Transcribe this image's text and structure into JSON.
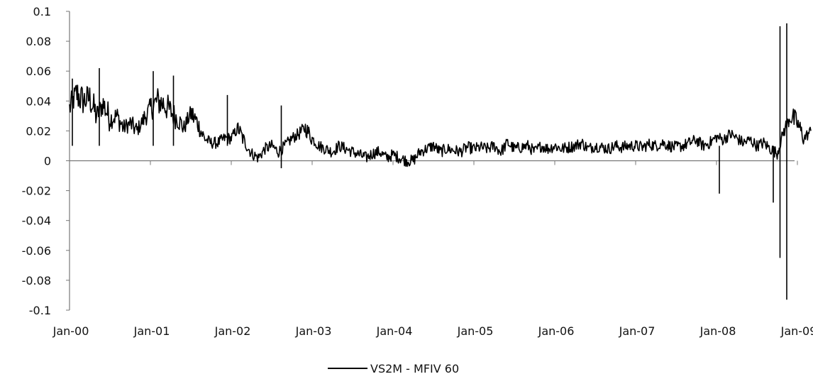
{
  "chart_data": {
    "type": "line",
    "title": "",
    "xlabel": "",
    "ylabel": "",
    "x_tick_labels": [
      "Jan-00",
      "Jan-01",
      "Jan-02",
      "Jan-03",
      "Jan-04",
      "Jan-05",
      "Jan-06",
      "Jan-07",
      "Jan-08",
      "Jan-09"
    ],
    "y_tick_labels": [
      "0.1",
      "0.08",
      "0.06",
      "0.04",
      "0.02",
      "0",
      "-0.02",
      "-0.04",
      "-0.06",
      "-0.08",
      "-0.1"
    ],
    "xlim": [
      "2000-01",
      "2009-03"
    ],
    "ylim": [
      -0.1,
      0.1
    ],
    "grid": false,
    "legend": {
      "position": "bottom",
      "entries": [
        "VS2M - MFIV 60"
      ]
    },
    "series": [
      {
        "name": "VS2M - MFIV 60",
        "color": "#000000",
        "x": [
          "2000-01",
          "2000-02",
          "2000-03",
          "2000-04",
          "2000-05",
          "2000-06",
          "2000-07",
          "2000-08",
          "2000-09",
          "2000-10",
          "2000-11",
          "2000-12",
          "2001-01",
          "2001-02",
          "2001-03",
          "2001-04",
          "2001-05",
          "2001-06",
          "2001-07",
          "2001-08",
          "2001-09",
          "2001-10",
          "2001-11",
          "2001-12",
          "2002-01",
          "2002-02",
          "2002-03",
          "2002-04",
          "2002-05",
          "2002-06",
          "2002-07",
          "2002-08",
          "2002-09",
          "2002-10",
          "2002-11",
          "2002-12",
          "2003-01",
          "2003-02",
          "2003-03",
          "2003-04",
          "2003-05",
          "2003-06",
          "2003-07",
          "2003-08",
          "2003-09",
          "2003-10",
          "2003-11",
          "2003-12",
          "2004-01",
          "2004-02",
          "2004-03",
          "2004-04",
          "2004-05",
          "2004-06",
          "2004-07",
          "2004-08",
          "2004-09",
          "2004-10",
          "2004-11",
          "2004-12",
          "2005-01",
          "2005-02",
          "2005-03",
          "2005-04",
          "2005-05",
          "2005-06",
          "2005-07",
          "2005-08",
          "2005-09",
          "2005-10",
          "2005-11",
          "2005-12",
          "2006-01",
          "2006-02",
          "2006-03",
          "2006-04",
          "2006-05",
          "2006-06",
          "2006-07",
          "2006-08",
          "2006-09",
          "2006-10",
          "2006-11",
          "2006-12",
          "2007-01",
          "2007-02",
          "2007-03",
          "2007-04",
          "2007-05",
          "2007-06",
          "2007-07",
          "2007-08",
          "2007-09",
          "2007-10",
          "2007-11",
          "2007-12",
          "2008-01",
          "2008-02",
          "2008-03",
          "2008-04",
          "2008-05",
          "2008-06",
          "2008-07",
          "2008-08",
          "2008-09",
          "2008-10",
          "2008-11",
          "2008-12",
          "2009-01",
          "2009-02",
          "2009-03"
        ],
        "values": [
          0.035,
          0.045,
          0.04,
          0.042,
          0.03,
          0.038,
          0.028,
          0.03,
          0.022,
          0.025,
          0.02,
          0.028,
          0.035,
          0.04,
          0.038,
          0.033,
          0.028,
          0.022,
          0.032,
          0.025,
          0.015,
          0.012,
          0.012,
          0.015,
          0.015,
          0.022,
          0.012,
          0.005,
          0.002,
          0.008,
          0.01,
          0.006,
          0.01,
          0.015,
          0.018,
          0.022,
          0.015,
          0.01,
          0.008,
          0.006,
          0.01,
          0.008,
          0.006,
          0.004,
          0.002,
          0.005,
          0.006,
          0.002,
          0.004,
          0.002,
          0.0,
          0.0,
          0.006,
          0.008,
          0.01,
          0.006,
          0.008,
          0.007,
          0.006,
          0.009,
          0.008,
          0.009,
          0.008,
          0.01,
          0.006,
          0.012,
          0.008,
          0.009,
          0.01,
          0.006,
          0.01,
          0.008,
          0.01,
          0.008,
          0.009,
          0.01,
          0.012,
          0.008,
          0.01,
          0.009,
          0.008,
          0.01,
          0.009,
          0.01,
          0.01,
          0.009,
          0.011,
          0.01,
          0.012,
          0.01,
          0.009,
          0.01,
          0.012,
          0.014,
          0.01,
          0.012,
          0.016,
          0.014,
          0.018,
          0.015,
          0.012,
          0.014,
          0.01,
          0.012,
          0.008,
          0.005,
          0.02,
          0.03,
          0.025,
          0.015,
          0.02
        ]
      }
    ],
    "spikes": [
      {
        "x": "2008-10",
        "value": 0.09
      },
      {
        "x": "2008-10",
        "value": -0.065
      },
      {
        "x": "2008-11",
        "value": 0.092
      },
      {
        "x": "2008-11",
        "value": -0.093
      },
      {
        "x": "2008-09",
        "value": -0.028
      },
      {
        "x": "2008-01",
        "value": -0.022
      },
      {
        "x": "2000-01",
        "value": 0.055
      },
      {
        "x": "2000-05",
        "value": 0.062
      },
      {
        "x": "2001-01",
        "value": 0.06
      },
      {
        "x": "2001-04",
        "value": 0.057
      },
      {
        "x": "2001-12",
        "value": 0.044
      },
      {
        "x": "2002-08",
        "value": 0.037
      },
      {
        "x": "2002-08",
        "value": -0.005
      }
    ]
  }
}
